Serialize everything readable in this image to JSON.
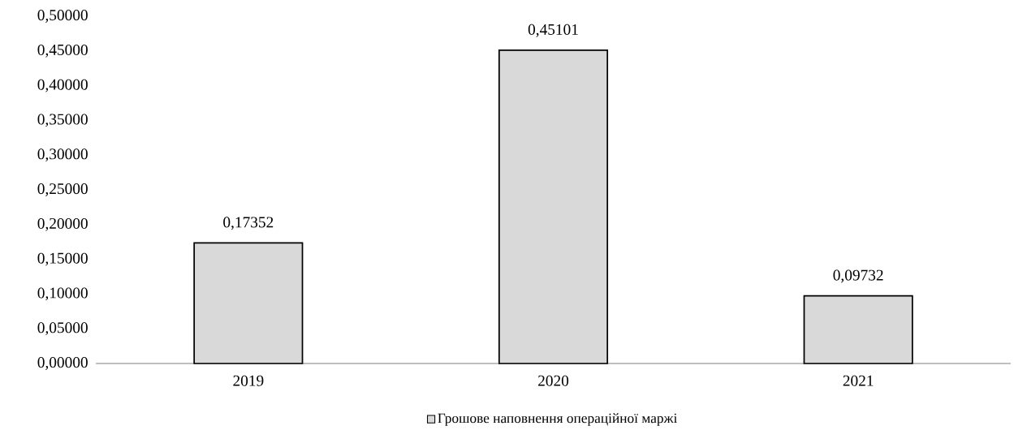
{
  "chart_data": {
    "type": "bar",
    "categories": [
      "2019",
      "2020",
      "2021"
    ],
    "series": [
      {
        "name": "Грошове наповнення операційної маржі",
        "color": "#d9d9d9",
        "values": [
          0.17352,
          0.45101,
          0.09732
        ],
        "value_labels": [
          "0,17352",
          "0,45101",
          "0,09732"
        ]
      }
    ],
    "ylim": [
      0,
      0.5
    ],
    "yticks": [
      {
        "value": 0,
        "label": "0,00000"
      },
      {
        "value": 0.05,
        "label": "0,05000"
      },
      {
        "value": 0.1,
        "label": "0,10000"
      },
      {
        "value": 0.15,
        "label": "0,15000"
      },
      {
        "value": 0.2,
        "label": "0,20000"
      },
      {
        "value": 0.25,
        "label": "0,25000"
      },
      {
        "value": 0.3,
        "label": "0,30000"
      },
      {
        "value": 0.35,
        "label": "0,35000"
      },
      {
        "value": 0.4,
        "label": "0,40000"
      },
      {
        "value": 0.45,
        "label": "0,45000"
      },
      {
        "value": 0.5,
        "label": "0,50000"
      }
    ],
    "grid": false,
    "legend": "bottom"
  }
}
